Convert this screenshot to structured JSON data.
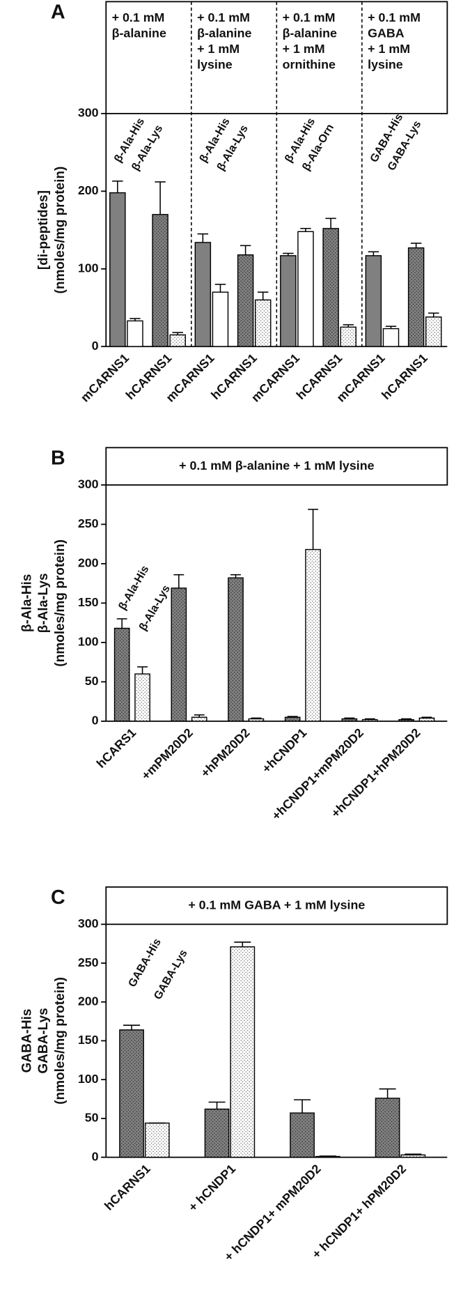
{
  "chart_data": [
    {
      "type": "bar",
      "panel": "A",
      "header_sections": [
        {
          "lines": [
            "+ 0.1 mM",
            "β-alanine"
          ],
          "annotations": [
            "β-Ala-His",
            "β-Ala-Lys"
          ]
        },
        {
          "lines": [
            "+ 0.1 mM",
            "β-alanine",
            "+ 1 mM",
            "lysine"
          ],
          "annotations": [
            "β-Ala-His",
            "β-Ala-Lys"
          ]
        },
        {
          "lines": [
            "+ 0.1 mM",
            "β-alanine",
            "+ 1 mM",
            "ornithine"
          ],
          "annotations": [
            "β-Ala-His",
            "β-Ala-Orn"
          ]
        },
        {
          "lines": [
            "+ 0.1 mM",
            "GABA",
            "+ 1 mM",
            "lysine"
          ],
          "annotations": [
            "GABA-His",
            "GABA-Lys"
          ]
        }
      ],
      "y_title": [
        "[di-peptides]",
        "(nmoles/mg protein)"
      ],
      "categories": [
        "mCARNS1",
        "hCARNS1",
        "mCARNS1",
        "hCARNS1",
        "mCARNS1",
        "hCARNS1",
        "mCARNS1",
        "hCARNS1"
      ],
      "dotted": [
        false,
        true,
        false,
        true,
        false,
        true,
        false,
        true
      ],
      "ylim": [
        0,
        300
      ],
      "yticks": [
        0,
        100,
        200,
        300
      ],
      "series": [
        {
          "color": "#808080",
          "values": [
            198,
            170,
            134,
            118,
            117,
            152,
            117,
            127
          ],
          "errors": [
            15,
            42,
            11,
            12,
            3,
            13,
            5,
            6
          ]
        },
        {
          "color": "#ffffff",
          "values": [
            33,
            15,
            70,
            60,
            148,
            25,
            23,
            38
          ],
          "errors": [
            3,
            3,
            10,
            10,
            4,
            3,
            3,
            5
          ]
        }
      ]
    },
    {
      "type": "bar",
      "panel": "B",
      "header": "+ 0.1 mM β-alanine + 1 mM lysine",
      "annotations": [
        "β-Ala-His",
        "β-Ala-Lys"
      ],
      "y_title": [
        "β-Ala-His",
        "β-Ala-Lys",
        "(nmoles/mg protein)"
      ],
      "categories": [
        "hCARS1",
        "+mPM20D2",
        "+hPM20D2",
        "+hCNDP1",
        "+hCNDP1+mPM20D2",
        "+hCNDP1+hPM20D2"
      ],
      "dotted": [
        true,
        true,
        true,
        true,
        true,
        true
      ],
      "ylim": [
        0,
        300
      ],
      "yticks": [
        0,
        50,
        100,
        150,
        200,
        250,
        300
      ],
      "series": [
        {
          "color": "#808080",
          "values": [
            118,
            169,
            182,
            5,
            3,
            2
          ],
          "errors": [
            12,
            17,
            4,
            1,
            1,
            1
          ]
        },
        {
          "color": "#ffffff",
          "values": [
            60,
            5,
            3,
            218,
            2,
            4
          ],
          "errors": [
            9,
            3,
            1,
            51,
            1,
            1
          ]
        }
      ]
    },
    {
      "type": "bar",
      "panel": "C",
      "header": "+ 0.1 mM GABA + 1 mM lysine",
      "annotations": [
        "GABA-His",
        "GABA-Lys"
      ],
      "y_title": [
        "GABA-His",
        "GABA-Lys",
        "(nmoles/mg protein)"
      ],
      "categories": [
        "hCARNS1",
        "+ hCNDP1",
        "+ hCNDP1+ mPM20D2",
        "+ hCNDP1+ hPM20D2"
      ],
      "dotted": [
        true,
        true,
        true,
        true
      ],
      "ylim": [
        0,
        300
      ],
      "yticks": [
        0,
        50,
        100,
        150,
        200,
        250,
        300
      ],
      "series": [
        {
          "color": "#808080",
          "values": [
            164,
            62,
            57,
            76
          ],
          "errors": [
            6,
            9,
            17,
            12
          ]
        },
        {
          "color": "#ffffff",
          "values": [
            44,
            271,
            1,
            3
          ],
          "errors": [
            0,
            6,
            0.5,
            1
          ]
        }
      ]
    }
  ]
}
